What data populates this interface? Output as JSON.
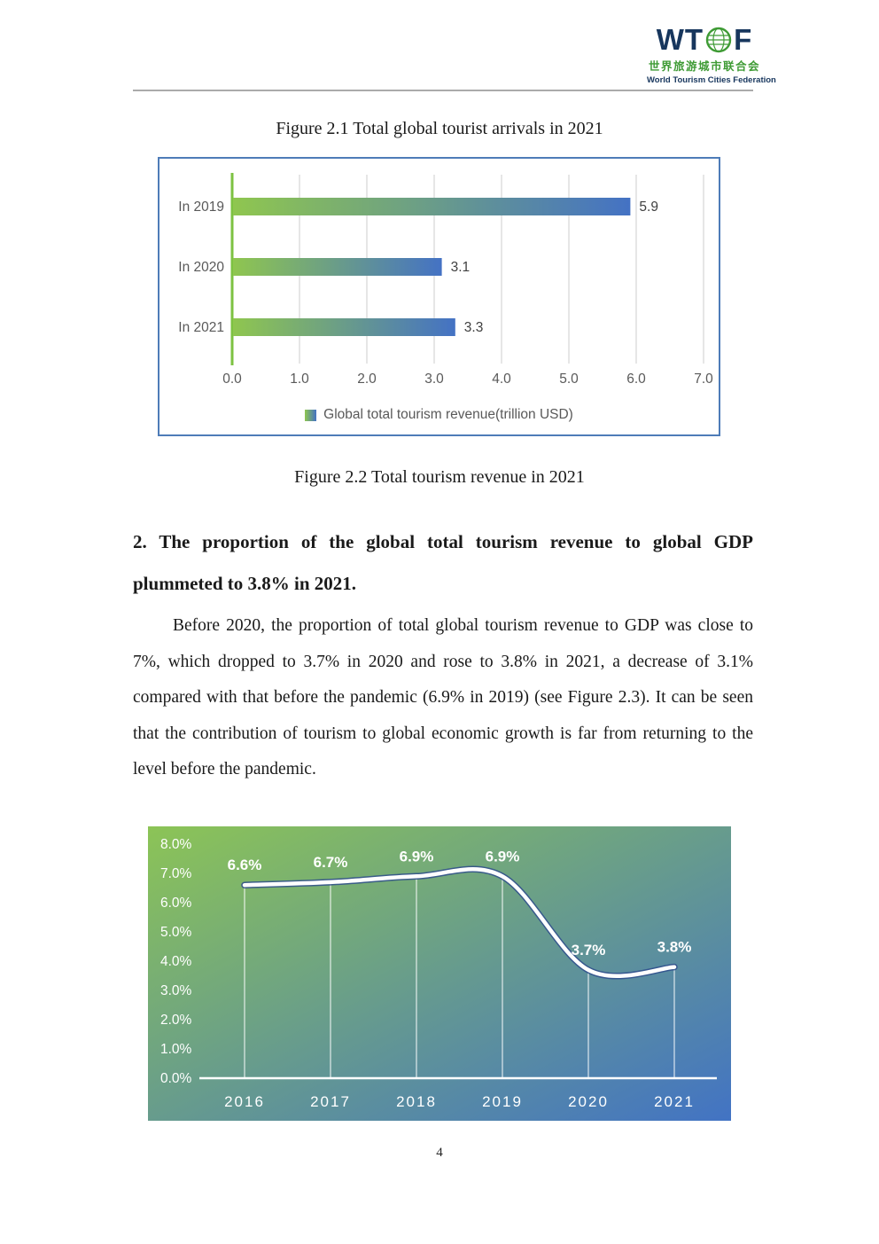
{
  "logo": {
    "letters_left": "WT",
    "letters_right": "F",
    "chinese": "世界旅游城市联合会",
    "english": "World Tourism Cities Federation",
    "navy": "#17365D",
    "green": "#3F9B35"
  },
  "captions": {
    "figure21": "Figure 2.1 Total global tourist arrivals in 2021",
    "figure22": "Figure 2.2 Total tourism revenue in 2021"
  },
  "section": {
    "heading": "2. The proportion of the global total tourism revenue to global GDP plummeted to 3.8% in 2021.",
    "paragraph": "Before 2020, the proportion of total global tourism revenue to GDP was close to 7%, which dropped to 3.7% in 2020 and rose to 3.8% in 2021, a decrease of 3.1% compared with that before the pandemic (6.9% in 2019) (see Figure 2.3). It can be seen that the contribution of tourism to global economic growth is far from returning to the level before the pandemic."
  },
  "page_number": "4",
  "chart_data": [
    {
      "type": "bar",
      "orientation": "horizontal",
      "categories": [
        "In 2019",
        "In 2020",
        "In 2021"
      ],
      "values": [
        5.9,
        3.1,
        3.3
      ],
      "value_labels": [
        "5.9",
        "3.1",
        "3.3"
      ],
      "xlim": [
        0.0,
        7.0
      ],
      "xticks": [
        "0.0",
        "1.0",
        "2.0",
        "3.0",
        "4.0",
        "5.0",
        "6.0",
        "7.0"
      ],
      "grid": true,
      "legend": "Global total tourism revenue(trillion USD)",
      "legend_position": "bottom",
      "bar_gradient": [
        "#8FC64F",
        "#4472C4"
      ],
      "frame_color": "#4E7CB8",
      "axis_color": "#7DC242",
      "grid_color": "#D9D9D9",
      "text_color": "#595959"
    },
    {
      "type": "line",
      "categories": [
        "2016",
        "2017",
        "2018",
        "2019",
        "2020",
        "2021"
      ],
      "values": [
        6.6,
        6.7,
        6.9,
        6.9,
        3.7,
        3.8
      ],
      "point_labels": [
        "6.6%",
        "6.7%",
        "6.9%",
        "6.9%",
        "3.7%",
        "3.8%"
      ],
      "ylim": [
        0,
        8
      ],
      "yticks": [
        "8.0%",
        "7.0%",
        "6.0%",
        "5.0%",
        "4.0%",
        "3.0%",
        "2.0%",
        "1.0%",
        "0.0%"
      ],
      "grid": false,
      "line_color": "#FFFFFF",
      "shadow_color": "#2F4E8C",
      "background_gradient": [
        "#8CC456",
        "#4273C4"
      ],
      "label_color": "#FFFFFF"
    }
  ]
}
